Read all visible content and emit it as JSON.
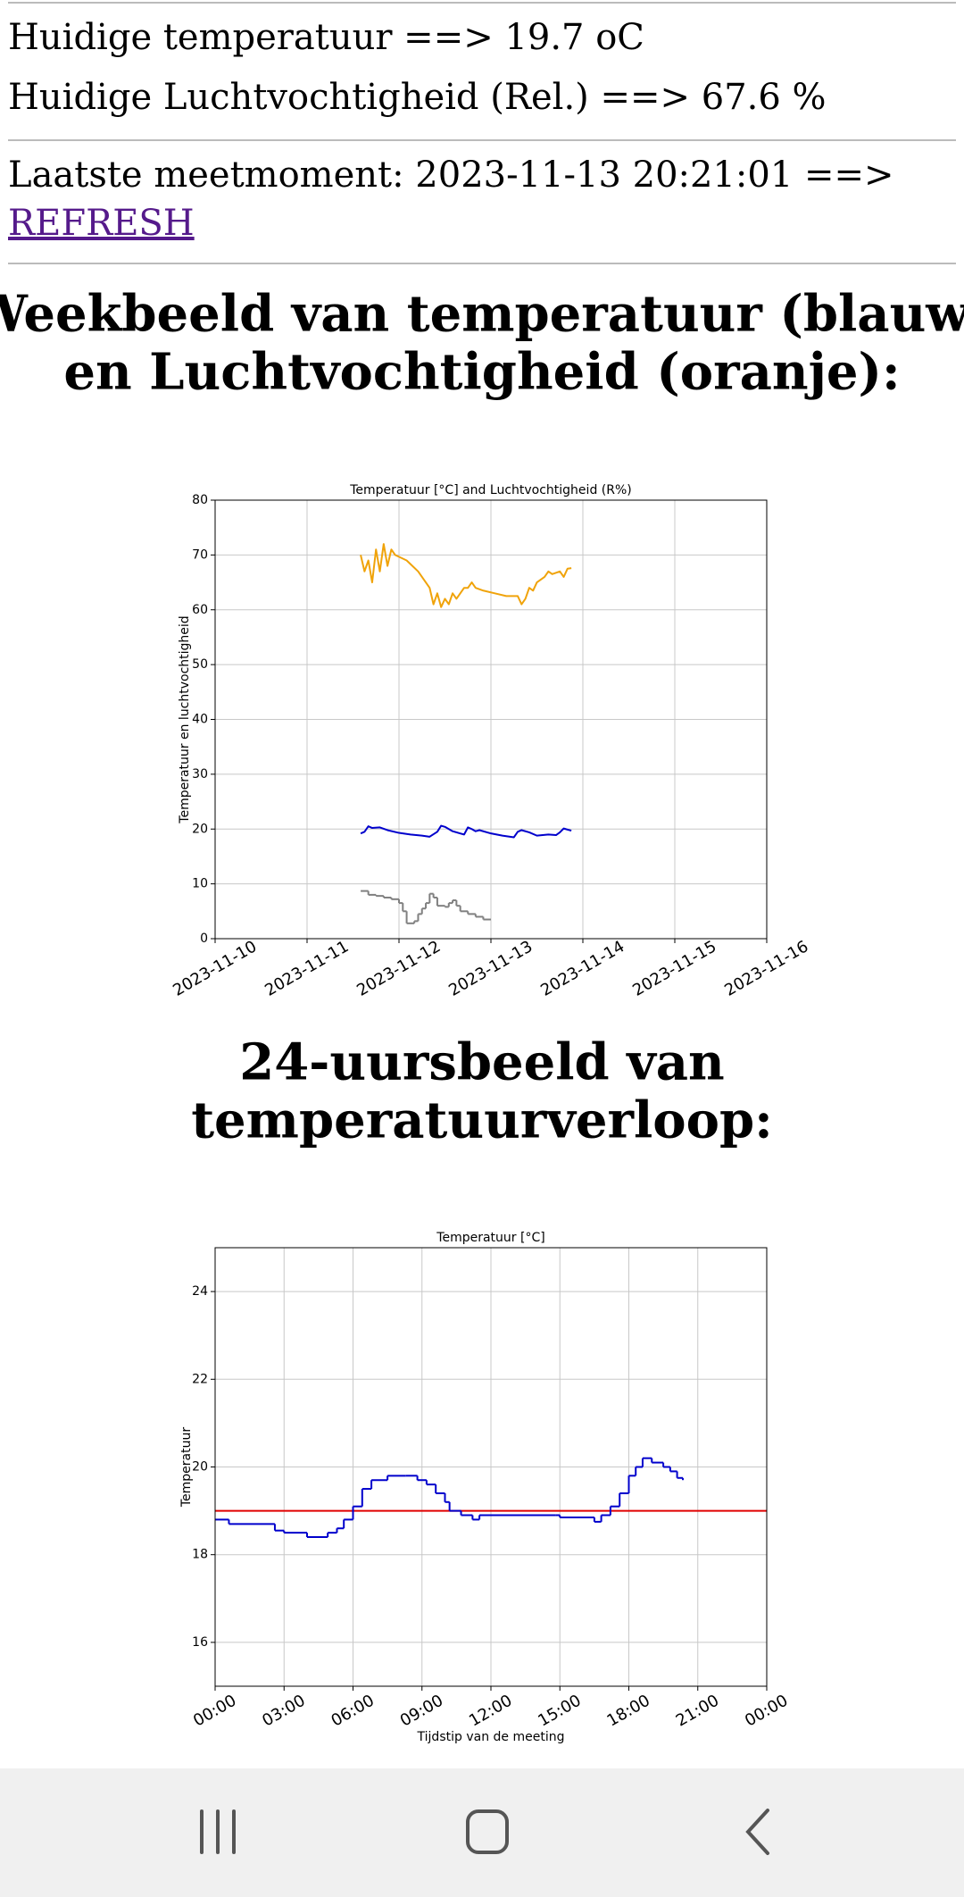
{
  "status": {
    "temperature": "Huidige temperatuur ==> 19.7 oC",
    "humidity": "Huidige Luchtvochtigheid (Rel.) ==> 67.6 %",
    "last_measurement": "Laatste meetmoment: 2023-11-13 20:21:01 ==>",
    "refresh_link": "REFRESH"
  },
  "headings": [
    [
      "Weekbeeld van temperatuur (blauw)",
      "en Luchtvochtigheid (oranje):"
    ],
    [
      "24-uursbeeld van",
      "temperatuurverloop:"
    ]
  ],
  "chart_data": [
    {
      "type": "line",
      "title": "Temperatuur [°C] and Luchtvochtigheid (R%)",
      "ylabel": "Temperatuur en luchtvochtigheid",
      "xlim": [
        "2023-11-10",
        "2023-11-16"
      ],
      "xticks": [
        "2023-11-10",
        "2023-11-11",
        "2023-11-12",
        "2023-11-13",
        "2023-11-14",
        "2023-11-15",
        "2023-11-16"
      ],
      "ylim": [
        0,
        80
      ],
      "yticks": [
        0,
        10,
        20,
        30,
        40,
        50,
        60,
        70,
        80
      ],
      "grid": true,
      "series": [
        {
          "color": "#f0a30a",
          "x": [
            "2023-11-11T14:00",
            "2023-11-11T15:00",
            "2023-11-11T16:00",
            "2023-11-11T17:00",
            "2023-11-11T18:00",
            "2023-11-11T19:00",
            "2023-11-11T20:00",
            "2023-11-11T21:00",
            "2023-11-11T22:00",
            "2023-11-11T23:00",
            "2023-11-12T02:00",
            "2023-11-12T05:00",
            "2023-11-12T08:00",
            "2023-11-12T09:00",
            "2023-11-12T10:00",
            "2023-11-12T11:00",
            "2023-11-12T12:00",
            "2023-11-12T13:00",
            "2023-11-12T14:00",
            "2023-11-12T15:00",
            "2023-11-12T16:00",
            "2023-11-12T17:00",
            "2023-11-12T18:00",
            "2023-11-12T19:00",
            "2023-11-12T20:00",
            "2023-11-12T22:00",
            "2023-11-13T01:00",
            "2023-11-13T04:00",
            "2023-11-13T07:00",
            "2023-11-13T08:00",
            "2023-11-13T09:00",
            "2023-11-13T10:00",
            "2023-11-13T11:00",
            "2023-11-13T12:00",
            "2023-11-13T14:00",
            "2023-11-13T15:00",
            "2023-11-13T16:00",
            "2023-11-13T18:00",
            "2023-11-13T19:00",
            "2023-11-13T20:00",
            "2023-11-13T21:00"
          ],
          "values": [
            70,
            67,
            69,
            65,
            71,
            67,
            72,
            68,
            71,
            70,
            69,
            67,
            64,
            61,
            63,
            60.5,
            62,
            61,
            63,
            62,
            63,
            64,
            64,
            65,
            64,
            63.5,
            63,
            62.5,
            62.5,
            61,
            62,
            64,
            63.5,
            65,
            66,
            67,
            66.5,
            67,
            66,
            67.5,
            67.6
          ]
        },
        {
          "color": "#0000cc",
          "x": [
            "2023-11-11T14:00",
            "2023-11-11T15:00",
            "2023-11-11T16:00",
            "2023-11-11T17:00",
            "2023-11-11T19:00",
            "2023-11-11T21:00",
            "2023-11-12T00:00",
            "2023-11-12T03:00",
            "2023-11-12T06:00",
            "2023-11-12T08:00",
            "2023-11-12T10:00",
            "2023-11-12T11:00",
            "2023-11-12T12:00",
            "2023-11-12T14:00",
            "2023-11-12T16:00",
            "2023-11-12T17:00",
            "2023-11-12T18:00",
            "2023-11-12T19:00",
            "2023-11-12T20:00",
            "2023-11-12T21:00",
            "2023-11-13T00:00",
            "2023-11-13T03:00",
            "2023-11-13T06:00",
            "2023-11-13T07:00",
            "2023-11-13T08:00",
            "2023-11-13T10:00",
            "2023-11-13T12:00",
            "2023-11-13T15:00",
            "2023-11-13T17:00",
            "2023-11-13T18:00",
            "2023-11-13T19:00",
            "2023-11-13T20:00",
            "2023-11-13T21:00"
          ],
          "values": [
            19.2,
            19.5,
            20.5,
            20.2,
            20.3,
            19.8,
            19.3,
            19,
            18.8,
            18.6,
            19.5,
            20.6,
            20.4,
            19.6,
            19.2,
            19,
            20.3,
            20,
            19.6,
            19.8,
            19.2,
            18.8,
            18.5,
            19.5,
            19.8,
            19.4,
            18.8,
            19,
            18.9,
            19.4,
            20.1,
            19.9,
            19.7
          ]
        },
        {
          "color": "#808080",
          "step": "post",
          "x": [
            "2023-11-11T14:00",
            "2023-11-11T16:00",
            "2023-11-11T18:00",
            "2023-11-11T20:00",
            "2023-11-11T22:00",
            "2023-11-12T00:00",
            "2023-11-12T01:00",
            "2023-11-12T02:00",
            "2023-11-12T04:00",
            "2023-11-12T05:00",
            "2023-11-12T06:00",
            "2023-11-12T07:00",
            "2023-11-12T08:00",
            "2023-11-12T09:00",
            "2023-11-12T10:00",
            "2023-11-12T12:00",
            "2023-11-12T13:00",
            "2023-11-12T14:00",
            "2023-11-12T15:00",
            "2023-11-12T16:00",
            "2023-11-12T18:00",
            "2023-11-12T20:00",
            "2023-11-12T22:00",
            "2023-11-13T00:00"
          ],
          "values": [
            8.7,
            8,
            7.8,
            7.5,
            7.2,
            6.5,
            5,
            2.8,
            3.2,
            4.5,
            5.5,
            6.5,
            8.2,
            7.5,
            6,
            5.8,
            6.5,
            7,
            6,
            5,
            4.5,
            4,
            3.5,
            3.5
          ]
        }
      ]
    },
    {
      "type": "line",
      "title": "Temperatuur [°C]",
      "ylabel": "Temperatuur",
      "xlabel": "Tijdstip van de meeting",
      "xlim": [
        0,
        24
      ],
      "xticks": [
        {
          "value": 0,
          "label": "00:00"
        },
        {
          "value": 3,
          "label": "03:00"
        },
        {
          "value": 6,
          "label": "06:00"
        },
        {
          "value": 9,
          "label": "09:00"
        },
        {
          "value": 12,
          "label": "12:00"
        },
        {
          "value": 15,
          "label": "15:00"
        },
        {
          "value": 18,
          "label": "18:00"
        },
        {
          "value": 21,
          "label": "21:00"
        },
        {
          "value": 24,
          "label": "00:00"
        }
      ],
      "ylim": [
        15,
        25
      ],
      "yticks": [
        16,
        18,
        20,
        22,
        24
      ],
      "grid": true,
      "reference_line": 19,
      "reference_color": "#e00000",
      "series": [
        {
          "color": "#0000cc",
          "step": "post",
          "x": [
            0,
            0.6,
            2.6,
            3,
            4,
            4.9,
            5.3,
            5.6,
            6,
            6.4,
            6.8,
            7.5,
            8.3,
            8.8,
            9.2,
            9.6,
            10,
            10.2,
            10.7,
            11.2,
            11.5,
            12,
            14.8,
            15,
            16.5,
            16.8,
            17.2,
            17.6,
            18,
            18.3,
            18.6,
            19,
            19.5,
            19.8,
            20.1,
            20.35
          ],
          "values": [
            18.8,
            18.7,
            18.55,
            18.5,
            18.4,
            18.5,
            18.6,
            18.8,
            19.1,
            19.5,
            19.7,
            19.8,
            19.8,
            19.7,
            19.6,
            19.4,
            19.2,
            19,
            18.9,
            18.8,
            18.9,
            18.9,
            18.9,
            18.85,
            18.75,
            18.9,
            19.1,
            19.4,
            19.8,
            20,
            20.2,
            20.1,
            20,
            19.9,
            19.75,
            19.7
          ]
        }
      ]
    }
  ]
}
